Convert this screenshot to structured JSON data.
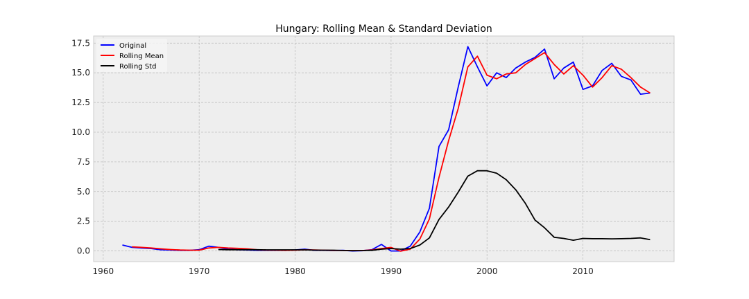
{
  "chart_data": {
    "type": "line",
    "title": "Hungary: Rolling Mean & Standard Deviation",
    "xlabel": "",
    "ylabel": "",
    "xlim": [
      1959,
      2019.5
    ],
    "ylim": [
      -0.9,
      18.1
    ],
    "xticks": [
      1960,
      1970,
      1980,
      1990,
      2000,
      2010
    ],
    "yticks": [
      0.0,
      2.5,
      5.0,
      7.5,
      10.0,
      12.5,
      15.0,
      17.5
    ],
    "xtick_labels": [
      "1960",
      "1970",
      "1980",
      "1990",
      "2000",
      "2010"
    ],
    "ytick_labels": [
      "0.0",
      "2.5",
      "5.0",
      "7.5",
      "10.0",
      "12.5",
      "15.0",
      "17.5"
    ],
    "grid": true,
    "legend_position": "upper-left",
    "series": [
      {
        "name": "Original",
        "color": "#0000ff",
        "x": [
          1962,
          1963,
          1964,
          1965,
          1966,
          1967,
          1968,
          1969,
          1970,
          1971,
          1972,
          1973,
          1974,
          1975,
          1976,
          1977,
          1978,
          1979,
          1980,
          1981,
          1982,
          1983,
          1984,
          1985,
          1986,
          1987,
          1988,
          1989,
          1990,
          1991,
          1992,
          1993,
          1994,
          1995,
          1996,
          1997,
          1998,
          1999,
          2000,
          2001,
          2002,
          2003,
          2004,
          2005,
          2006,
          2007,
          2008,
          2009,
          2010,
          2011,
          2012,
          2013,
          2014,
          2015,
          2016,
          2017
        ],
        "y": [
          0.5,
          0.3,
          0.25,
          0.2,
          0.1,
          0.08,
          0.05,
          0.05,
          0.1,
          0.4,
          0.3,
          0.15,
          0.1,
          0.08,
          0.05,
          0.05,
          0.05,
          0.05,
          0.08,
          0.15,
          0.05,
          0.05,
          0.03,
          0.05,
          0.0,
          0.02,
          0.1,
          0.55,
          0.0,
          0.0,
          0.4,
          1.6,
          3.6,
          8.8,
          10.2,
          13.8,
          17.2,
          15.5,
          13.9,
          15.0,
          14.6,
          15.4,
          15.9,
          16.3,
          17.0,
          14.5,
          15.4,
          15.9,
          13.6,
          13.9,
          15.2,
          15.8,
          14.7,
          14.4,
          13.2,
          13.3
        ]
      },
      {
        "name": "Rolling Mean",
        "color": "#ff0000",
        "x": [
          1963,
          1964,
          1965,
          1966,
          1967,
          1968,
          1969,
          1970,
          1971,
          1972,
          1973,
          1974,
          1975,
          1976,
          1977,
          1978,
          1979,
          1980,
          1981,
          1982,
          1983,
          1984,
          1985,
          1986,
          1987,
          1988,
          1989,
          1990,
          1991,
          1992,
          1993,
          1994,
          1995,
          1996,
          1997,
          1998,
          1999,
          2000,
          2001,
          2002,
          2003,
          2004,
          2005,
          2006,
          2007,
          2008,
          2009,
          2010,
          2011,
          2012,
          2013,
          2014,
          2015,
          2016,
          2017
        ],
        "y": [
          0.35,
          0.3,
          0.25,
          0.18,
          0.12,
          0.08,
          0.06,
          0.06,
          0.25,
          0.3,
          0.25,
          0.22,
          0.18,
          0.1,
          0.07,
          0.06,
          0.05,
          0.06,
          0.09,
          0.08,
          0.06,
          0.04,
          0.04,
          0.03,
          0.03,
          0.08,
          0.2,
          0.3,
          -0.02,
          0.15,
          1.0,
          2.7,
          6.2,
          9.3,
          12.0,
          15.5,
          16.4,
          14.8,
          14.5,
          14.9,
          15.0,
          15.7,
          16.2,
          16.7,
          15.7,
          14.9,
          15.6,
          14.8,
          13.8,
          14.6,
          15.6,
          15.3,
          14.6,
          13.8,
          13.3
        ]
      },
      {
        "name": "Rolling Std",
        "color": "#000000",
        "x": [
          1972,
          1973,
          1974,
          1975,
          1976,
          1977,
          1978,
          1979,
          1980,
          1981,
          1982,
          1983,
          1984,
          1985,
          1986,
          1987,
          1988,
          1989,
          1990,
          1991,
          1992,
          1993,
          1994,
          1995,
          1996,
          1997,
          1998,
          1999,
          2000,
          2001,
          2002,
          2003,
          2004,
          2005,
          2006,
          2007,
          2008,
          2009,
          2010,
          2011,
          2012,
          2013,
          2014,
          2015,
          2016,
          2017
        ],
        "y": [
          0.12,
          0.1,
          0.1,
          0.1,
          0.1,
          0.09,
          0.09,
          0.09,
          0.09,
          0.09,
          0.07,
          0.06,
          0.06,
          0.04,
          0.02,
          0.03,
          0.05,
          0.15,
          0.2,
          0.15,
          0.2,
          0.5,
          1.1,
          2.65,
          3.7,
          4.95,
          6.3,
          6.75,
          6.75,
          6.55,
          6.0,
          5.15,
          4.0,
          2.6,
          1.95,
          1.15,
          1.05,
          0.9,
          1.05,
          1.03,
          1.03,
          1.02,
          1.03,
          1.05,
          1.1,
          0.95
        ]
      }
    ]
  }
}
